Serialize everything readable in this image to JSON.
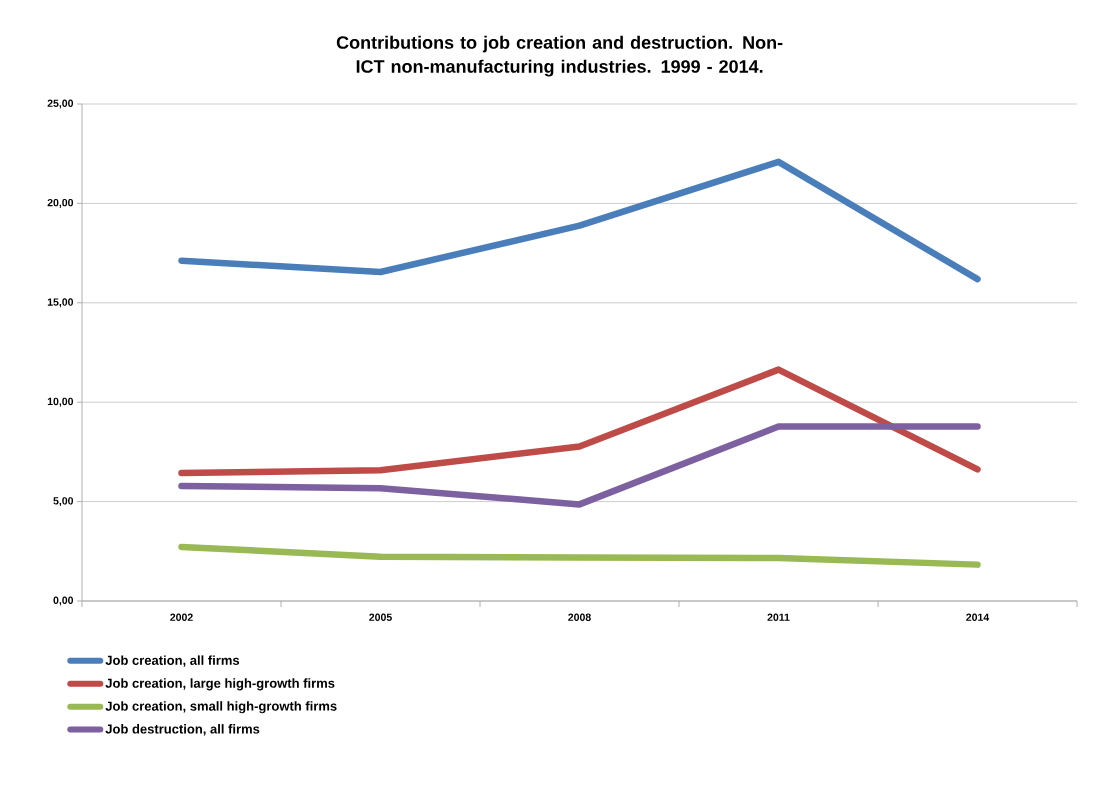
{
  "chart_data": {
    "type": "line",
    "title": "Contributions to job creation and destruction. Non-ICT non-manufacturing industries. 1999 - 2014.",
    "categories": [
      "2002",
      "2005",
      "2008",
      "2011",
      "2014"
    ],
    "series": [
      {
        "name": "Job creation, all firms",
        "color": "#4a7ebb",
        "values": [
          17.12,
          16.55,
          18.88,
          22.09,
          16.19
        ]
      },
      {
        "name": "Job creation, large high-growth firms",
        "color": "#be4b48",
        "values": [
          6.44,
          6.58,
          7.77,
          11.64,
          6.62
        ]
      },
      {
        "name": "Job creation, small high-growth firms",
        "color": "#98b954",
        "values": [
          2.72,
          2.23,
          2.19,
          2.16,
          1.83
        ]
      },
      {
        "name": "Job destruction, all firms",
        "color": "#7d60a0",
        "values": [
          5.79,
          5.67,
          4.86,
          8.78,
          8.78
        ]
      }
    ],
    "ylim": [
      0,
      25
    ],
    "yticks": [
      {
        "value": 0,
        "label": "0,00"
      },
      {
        "value": 5,
        "label": "5,00"
      },
      {
        "value": 10,
        "label": "10,00"
      },
      {
        "value": 15,
        "label": "15,00"
      },
      {
        "value": 20,
        "label": "20,00"
      },
      {
        "value": 25,
        "label": "25,00"
      }
    ],
    "grid": "y",
    "legend": "bottom",
    "marker": "none",
    "line_style": "solid"
  }
}
